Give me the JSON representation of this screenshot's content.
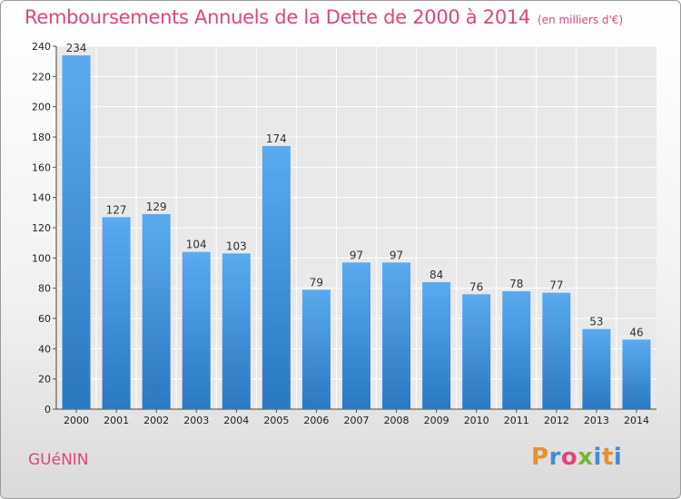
{
  "chart_data": {
    "type": "bar",
    "title": "Remboursements Annuels de la Dette de 2000 à 2014",
    "subtitle": "(en milliers d'€)",
    "categories": [
      "2000",
      "2001",
      "2002",
      "2003",
      "2004",
      "2005",
      "2006",
      "2007",
      "2008",
      "2009",
      "2010",
      "2011",
      "2012",
      "2013",
      "2014"
    ],
    "values": [
      234,
      127,
      129,
      104,
      103,
      174,
      79,
      97,
      97,
      84,
      76,
      78,
      77,
      53,
      46
    ],
    "xlabel": "",
    "ylabel": "",
    "ylim": [
      0,
      240
    ],
    "yticks": [
      0,
      20,
      40,
      60,
      80,
      100,
      120,
      140,
      160,
      180,
      200,
      220,
      240
    ],
    "grid": true,
    "bar_color": "#3d8fd6",
    "title_color": "#e0457b"
  },
  "commune": "GUéNIN",
  "logo": {
    "letters": [
      "P",
      "r",
      "o",
      "x",
      "i",
      "t",
      "i"
    ],
    "colors": [
      "#e8912c",
      "#3d8fd6",
      "#e0457b",
      "#7bb33a",
      "#3d8fd6",
      "#e8912c",
      "#3d8fd6"
    ]
  }
}
